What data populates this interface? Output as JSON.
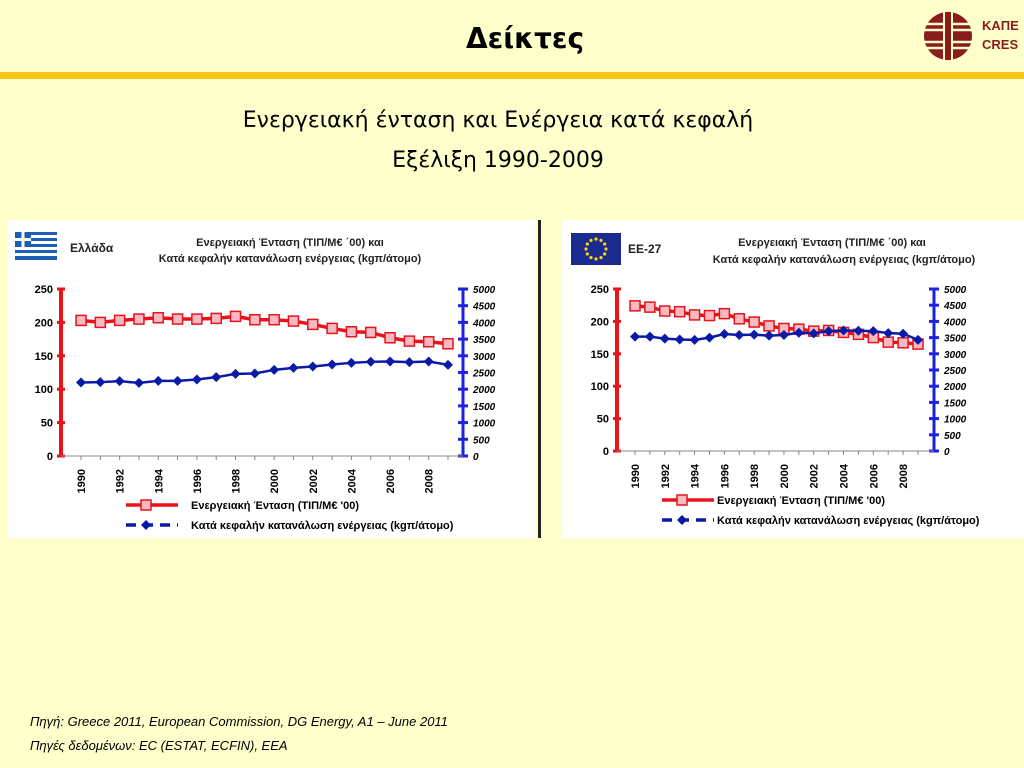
{
  "header": {
    "title": "Δείκτες",
    "logo_line1": "ΚΑΠΕ",
    "logo_line2": "CRES"
  },
  "subtitle": {
    "line1": "Ενεργειακή ένταση και Ενέργεια κατά κεφαλή",
    "line2": "Εξέλιξη 1990-2009"
  },
  "colors": {
    "background": "#ffffcc",
    "bar": "#f5c518",
    "intensity": "#e8131b",
    "intensity_fill": "#f7b9c2",
    "per_capita": "#0a1aa6",
    "right_axis": "#1e22e0"
  },
  "chart_data": [
    {
      "type": "line",
      "region": "Ελλάδα",
      "flag": "greece-flag-icon",
      "title": [
        "Ενεργειακή Ένταση (ΤΙΠ/Μ€ ΄00) και",
        "Κατά κεφαλήν κατανάλωση ενέργειας (kgπ/άτομο)"
      ],
      "x": [
        1990,
        1991,
        1992,
        1993,
        1994,
        1995,
        1996,
        1997,
        1998,
        1999,
        2000,
        2001,
        2002,
        2003,
        2004,
        2005,
        2006,
        2007,
        2008,
        2009
      ],
      "xtick_labels": [
        "1990",
        "1992",
        "1994",
        "1996",
        "1998",
        "2000",
        "2002",
        "2004",
        "2006",
        "2008"
      ],
      "ylim_left": [
        0,
        250
      ],
      "yticks_left": [
        "250",
        "200",
        "150",
        "100",
        "50",
        "0"
      ],
      "ylim_right": [
        0,
        5000
      ],
      "yticks_right": [
        "5000",
        "4500",
        "4000",
        "3500",
        "3000",
        "2500",
        "2000",
        "1500",
        "1000",
        "500",
        "0"
      ],
      "series": [
        {
          "name": "Ενεργειακή Ένταση (ΤΙΠ/Μ€ '00)",
          "axis": "left",
          "values": [
            203,
            200,
            203,
            205,
            207,
            205,
            205,
            206,
            209,
            204,
            204,
            202,
            197,
            191,
            186,
            185,
            177,
            172,
            171,
            168
          ]
        },
        {
          "name": "Κατά κεφαλήν κατανάλωση ενέργειας (kgπ/άτομο)",
          "axis": "right",
          "values": [
            2200,
            2210,
            2240,
            2190,
            2250,
            2250,
            2290,
            2360,
            2460,
            2470,
            2580,
            2640,
            2680,
            2740,
            2790,
            2820,
            2830,
            2810,
            2830,
            2730
          ]
        }
      ]
    },
    {
      "type": "line",
      "region": "ΕΕ-27",
      "flag": "eu-flag-icon",
      "title": [
        "Ενεργειακή Ένταση (ΤΙΠ/Μ€ ΄00) και",
        "Κατά κεφαλήν κατανάλωση ενέργειας (kgπ/άτομο)"
      ],
      "x": [
        1990,
        1991,
        1992,
        1993,
        1994,
        1995,
        1996,
        1997,
        1998,
        1999,
        2000,
        2001,
        2002,
        2003,
        2004,
        2005,
        2006,
        2007,
        2008,
        2009
      ],
      "xtick_labels": [
        "1990",
        "1992",
        "1994",
        "1996",
        "1998",
        "2000",
        "2002",
        "2004",
        "2006",
        "2008"
      ],
      "ylim_left": [
        0,
        250
      ],
      "yticks_left": [
        "250",
        "200",
        "150",
        "100",
        "50",
        "0"
      ],
      "ylim_right": [
        0,
        5000
      ],
      "yticks_right": [
        "5000",
        "4500",
        "4000",
        "3500",
        "3000",
        "2500",
        "2000",
        "1500",
        "1000",
        "500",
        "0"
      ],
      "series": [
        {
          "name": "Ενεργειακή Ένταση (ΤΙΠ/Μ€ '00)",
          "axis": "left",
          "values": [
            224,
            222,
            216,
            215,
            210,
            209,
            212,
            204,
            199,
            193,
            189,
            188,
            185,
            186,
            183,
            180,
            175,
            168,
            167,
            165
          ]
        },
        {
          "name": "Κατά κεφαλήν κατανάλωση ενέργειας (kgπ/άτομο)",
          "axis": "right",
          "values": [
            3530,
            3530,
            3470,
            3440,
            3430,
            3500,
            3610,
            3580,
            3590,
            3560,
            3580,
            3650,
            3630,
            3700,
            3720,
            3710,
            3700,
            3640,
            3620,
            3430
          ]
        }
      ]
    }
  ],
  "footer": {
    "source": "Πηγή: Greece 2011, European Commission, DG Energy, A1 – June 2011",
    "data_sources": "Πηγές δεδομένων: EC (ESTAT, ECFIN), EEA"
  }
}
